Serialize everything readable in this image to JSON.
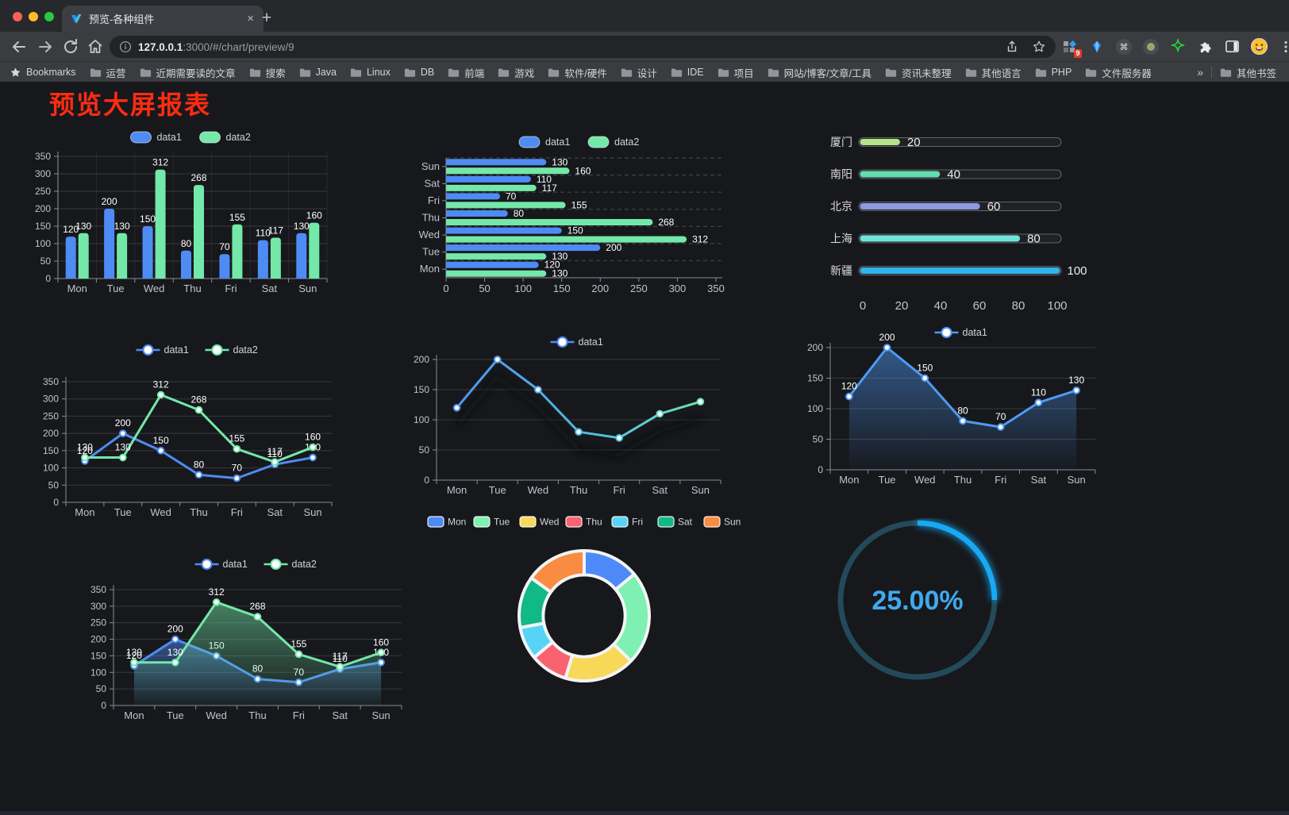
{
  "browser": {
    "tab": {
      "title": "预览-各种组件",
      "close_glyph": "×",
      "newtab_glyph": "+"
    },
    "address": {
      "host": "127.0.0.1",
      "rest": ":3000/#/chart/preview/9"
    },
    "extensions_badge": "9",
    "bookmarks": {
      "root_label": "Bookmarks",
      "items": [
        "运营",
        "近期需要读的文章",
        "搜索",
        "Java",
        "Linux",
        "DB",
        "前端",
        "游戏",
        "软件/硬件",
        "设计",
        "IDE",
        "项目",
        "网站/博客/文章/工具",
        "资讯未整理",
        "其他语言",
        "PHP",
        "文件服务器"
      ],
      "overflow_glyph": "»",
      "other_label": "其他书签"
    }
  },
  "page": {
    "title": "预览大屏报表",
    "title_color": "#fd2c12"
  },
  "chart_data": [
    {
      "id": "bar-vertical",
      "type": "bar",
      "categories": [
        "Mon",
        "Tue",
        "Wed",
        "Thu",
        "Fri",
        "Sat",
        "Sun"
      ],
      "series": [
        {
          "name": "data1",
          "color": "#4e8cf4",
          "values": [
            120,
            200,
            150,
            80,
            70,
            110,
            130
          ]
        },
        {
          "name": "data2",
          "color": "#73e8a9",
          "values": [
            130,
            130,
            312,
            268,
            155,
            117,
            160
          ]
        }
      ],
      "ylim": [
        0,
        350
      ],
      "ytick": 50,
      "legend_position": "top",
      "grid": true,
      "value_labels": true
    },
    {
      "id": "bar-horizontal",
      "type": "bar-horizontal",
      "categories": [
        "Mon",
        "Tue",
        "Wed",
        "Thu",
        "Fri",
        "Sat",
        "Sun"
      ],
      "series": [
        {
          "name": "data1",
          "color": "#4e8cf4",
          "values": [
            120,
            200,
            150,
            80,
            70,
            110,
            130
          ]
        },
        {
          "name": "data2",
          "color": "#73e8a9",
          "values": [
            130,
            130,
            312,
            268,
            155,
            117,
            160
          ]
        }
      ],
      "xlim": [
        0,
        350
      ],
      "xtick": 50,
      "legend_position": "top",
      "value_labels": true
    },
    {
      "id": "progress",
      "type": "progress-bar",
      "categories": [
        "厦门",
        "南阳",
        "北京",
        "上海",
        "新疆"
      ],
      "values": [
        20,
        40,
        60,
        80,
        100
      ],
      "colors": [
        "#b5e387",
        "#63dcb0",
        "#8f99e3",
        "#70e2de",
        "#32b4ea"
      ],
      "xlim": [
        0,
        100
      ],
      "xticks": [
        0,
        20,
        40,
        60,
        80,
        100
      ],
      "value_labels": true
    },
    {
      "id": "line-two",
      "type": "line",
      "categories": [
        "Mon",
        "Tue",
        "Wed",
        "Thu",
        "Fri",
        "Sat",
        "Sun"
      ],
      "series": [
        {
          "name": "data1",
          "color": "#4e8cf4",
          "values": [
            120,
            200,
            150,
            80,
            70,
            110,
            130
          ]
        },
        {
          "name": "data2",
          "color": "#73e8a9",
          "values": [
            130,
            130,
            312,
            268,
            155,
            117,
            160
          ]
        }
      ],
      "ylim": [
        0,
        350
      ],
      "ytick": 50,
      "legend_position": "top",
      "area": false,
      "value_labels": true
    },
    {
      "id": "line-gradient",
      "type": "line-gradient",
      "categories": [
        "Mon",
        "Tue",
        "Wed",
        "Thu",
        "Fri",
        "Sat",
        "Sun"
      ],
      "series": [
        {
          "name": "data1",
          "gradient": [
            "#4e8cf4",
            "#53c0dc",
            "#73e8a9"
          ],
          "values": [
            120,
            200,
            150,
            80,
            70,
            110,
            130
          ]
        }
      ],
      "ylim": [
        0,
        200
      ],
      "ytick": 50,
      "legend_position": "top",
      "shadow": true,
      "value_labels": false
    },
    {
      "id": "line-area",
      "type": "line",
      "categories": [
        "Mon",
        "Tue",
        "Wed",
        "Thu",
        "Fri",
        "Sat",
        "Sun"
      ],
      "series": [
        {
          "name": "data1",
          "color": "#4e9af5",
          "values": [
            120,
            200,
            150,
            80,
            70,
            110,
            130
          ]
        }
      ],
      "ylim": [
        0,
        200
      ],
      "ytick": 50,
      "legend_position": "top",
      "area": true,
      "value_labels": true
    },
    {
      "id": "line-two-area",
      "type": "line",
      "categories": [
        "Mon",
        "Tue",
        "Wed",
        "Thu",
        "Fri",
        "Sat",
        "Sun"
      ],
      "series": [
        {
          "name": "data1",
          "color": "#4e8cf4",
          "values": [
            120,
            200,
            150,
            80,
            70,
            110,
            130
          ]
        },
        {
          "name": "data2",
          "color": "#73e8a9",
          "values": [
            130,
            130,
            312,
            268,
            155,
            117,
            160
          ]
        }
      ],
      "ylim": [
        0,
        350
      ],
      "ytick": 50,
      "legend_position": "top",
      "area": true,
      "value_labels": true
    },
    {
      "id": "donut",
      "type": "pie",
      "categories": [
        "Mon",
        "Tue",
        "Wed",
        "Thu",
        "Fri",
        "Sat",
        "Sun"
      ],
      "values": [
        120,
        200,
        150,
        80,
        70,
        110,
        130
      ],
      "colors": [
        "#4d8af8",
        "#7df0b2",
        "#f8d858",
        "#f8636f",
        "#57d4f5",
        "#10b985",
        "#fa8c42"
      ],
      "inner_radius_ratio": 0.63,
      "legend_position": "top",
      "border_color": "#f2f3f5"
    },
    {
      "id": "gauge",
      "type": "gauge",
      "percent": 25,
      "label": "25.00%",
      "color": "#18a9f2",
      "track_color": "#234a5a",
      "text_color": "#3fa9ee"
    }
  ]
}
